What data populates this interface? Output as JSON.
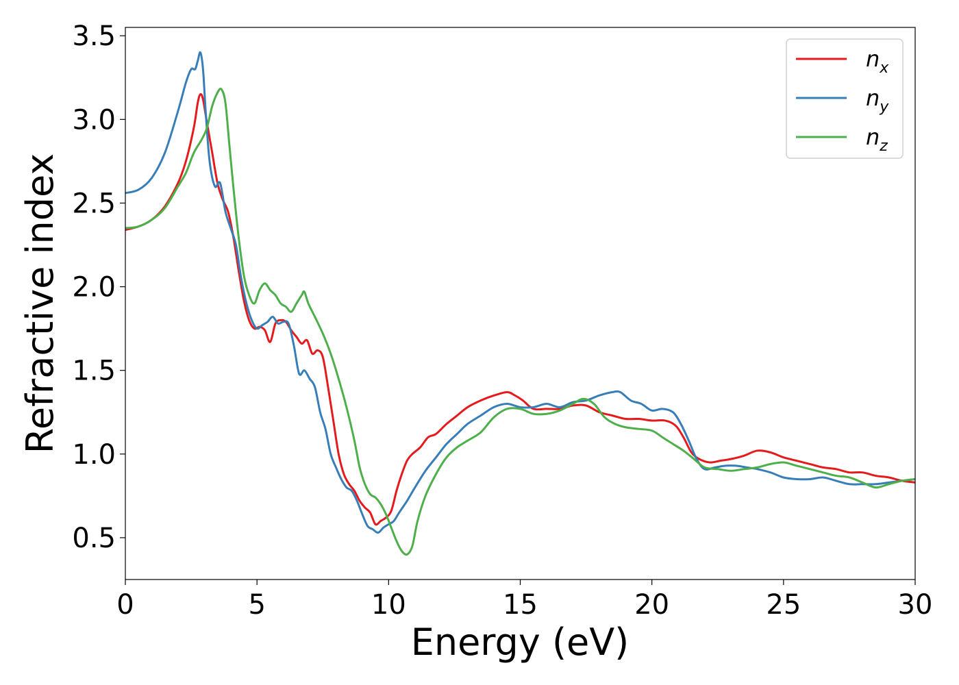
{
  "chart_data": {
    "type": "line",
    "xlabel": "Energy (eV)",
    "ylabel": "Refractive index",
    "xlim": [
      0,
      30
    ],
    "ylim": [
      0.25,
      3.55
    ],
    "xticks": [
      0,
      5,
      10,
      15,
      20,
      25,
      30
    ],
    "xtick_labels": [
      "0",
      "5",
      "10",
      "15",
      "20",
      "25",
      "30"
    ],
    "yticks": [
      0.5,
      1.0,
      1.5,
      2.0,
      2.5,
      3.0,
      3.5
    ],
    "ytick_labels": [
      "0.5",
      "1.0",
      "1.5",
      "2.0",
      "2.5",
      "3.0",
      "3.5"
    ],
    "grid": false,
    "legend_position": "top-right",
    "series": [
      {
        "name": "n_x",
        "label_base": "n",
        "label_sub": "x",
        "color": "#e41a1c",
        "x": [
          0,
          0.5,
          1,
          1.5,
          2,
          2.3,
          2.6,
          2.75,
          2.85,
          2.95,
          3.1,
          3.3,
          3.5,
          3.7,
          3.9,
          4.1,
          4.3,
          4.5,
          4.7,
          4.9,
          5.1,
          5.3,
          5.5,
          5.7,
          5.9,
          6.1,
          6.3,
          6.5,
          6.7,
          6.9,
          7.1,
          7.3,
          7.5,
          7.7,
          7.9,
          8.1,
          8.3,
          8.5,
          8.7,
          8.9,
          9.1,
          9.3,
          9.5,
          9.7,
          9.9,
          10.1,
          10.3,
          10.5,
          10.7,
          10.9,
          11.2,
          11.5,
          11.8,
          12.2,
          12.6,
          13,
          13.5,
          14,
          14.5,
          14.8,
          15.1,
          15.5,
          16,
          16.5,
          17,
          17.5,
          18,
          18.5,
          19,
          19.5,
          20,
          20.5,
          20.9,
          21.2,
          21.5,
          21.8,
          22.2,
          22.6,
          23,
          23.5,
          24,
          24.5,
          25,
          25.5,
          26,
          26.5,
          27,
          27.5,
          28,
          28.5,
          29,
          29.5,
          30
        ],
        "y": [
          2.34,
          2.36,
          2.4,
          2.48,
          2.62,
          2.75,
          2.95,
          3.1,
          3.15,
          3.12,
          2.98,
          2.8,
          2.62,
          2.52,
          2.45,
          2.3,
          2.1,
          1.92,
          1.8,
          1.75,
          1.76,
          1.74,
          1.67,
          1.78,
          1.8,
          1.79,
          1.74,
          1.7,
          1.66,
          1.68,
          1.6,
          1.62,
          1.58,
          1.4,
          1.2,
          1.0,
          0.88,
          0.82,
          0.78,
          0.72,
          0.68,
          0.65,
          0.58,
          0.6,
          0.62,
          0.66,
          0.78,
          0.88,
          0.96,
          1.0,
          1.04,
          1.1,
          1.12,
          1.18,
          1.23,
          1.28,
          1.32,
          1.35,
          1.37,
          1.35,
          1.32,
          1.27,
          1.27,
          1.27,
          1.29,
          1.29,
          1.25,
          1.23,
          1.21,
          1.21,
          1.2,
          1.2,
          1.17,
          1.1,
          1.01,
          0.97,
          0.95,
          0.96,
          0.97,
          0.99,
          1.02,
          1.01,
          0.98,
          0.96,
          0.94,
          0.92,
          0.91,
          0.89,
          0.89,
          0.87,
          0.86,
          0.84,
          0.83
        ]
      },
      {
        "name": "n_y",
        "label_base": "n",
        "label_sub": "y",
        "color": "#377eb8",
        "x": [
          0,
          0.5,
          1,
          1.5,
          2,
          2.3,
          2.5,
          2.65,
          2.75,
          2.85,
          2.95,
          3.05,
          3.2,
          3.4,
          3.6,
          3.8,
          4.0,
          4.2,
          4.4,
          4.6,
          4.8,
          5.0,
          5.2,
          5.4,
          5.6,
          5.8,
          6.0,
          6.2,
          6.4,
          6.6,
          6.8,
          7.0,
          7.2,
          7.4,
          7.6,
          7.8,
          8.0,
          8.2,
          8.4,
          8.6,
          8.8,
          9.0,
          9.2,
          9.4,
          9.6,
          9.8,
          10,
          10.2,
          10.4,
          10.7,
          11,
          11.4,
          11.8,
          12.2,
          12.6,
          13,
          13.5,
          14,
          14.5,
          15,
          15.5,
          16,
          16.5,
          17,
          17.5,
          18,
          18.5,
          18.8,
          19.2,
          19.6,
          20,
          20.4,
          20.8,
          21.1,
          21.4,
          21.7,
          22,
          22.4,
          22.8,
          23.2,
          23.6,
          24,
          24.5,
          25,
          25.5,
          26,
          26.5,
          27,
          27.5,
          28,
          28.5,
          29,
          29.5,
          30
        ],
        "y": [
          2.56,
          2.58,
          2.65,
          2.8,
          3.05,
          3.22,
          3.3,
          3.3,
          3.35,
          3.4,
          3.3,
          3.05,
          2.75,
          2.6,
          2.62,
          2.45,
          2.35,
          2.25,
          2.05,
          1.9,
          1.8,
          1.75,
          1.77,
          1.79,
          1.82,
          1.78,
          1.79,
          1.78,
          1.65,
          1.48,
          1.5,
          1.45,
          1.4,
          1.25,
          1.15,
          1.0,
          0.92,
          0.85,
          0.8,
          0.78,
          0.72,
          0.64,
          0.57,
          0.55,
          0.53,
          0.56,
          0.58,
          0.6,
          0.65,
          0.72,
          0.8,
          0.9,
          0.98,
          1.06,
          1.12,
          1.18,
          1.23,
          1.28,
          1.3,
          1.28,
          1.28,
          1.3,
          1.28,
          1.31,
          1.32,
          1.35,
          1.37,
          1.37,
          1.32,
          1.3,
          1.26,
          1.27,
          1.25,
          1.18,
          1.08,
          0.97,
          0.91,
          0.92,
          0.93,
          0.93,
          0.92,
          0.91,
          0.89,
          0.86,
          0.85,
          0.85,
          0.86,
          0.84,
          0.82,
          0.82,
          0.82,
          0.83,
          0.84,
          0.85
        ]
      },
      {
        "name": "n_z",
        "label_base": "n",
        "label_sub": "z",
        "color": "#4daf4a",
        "x": [
          0,
          0.5,
          1,
          1.5,
          2,
          2.3,
          2.6,
          2.9,
          3.1,
          3.3,
          3.5,
          3.65,
          3.8,
          3.95,
          4.1,
          4.3,
          4.5,
          4.7,
          4.9,
          5.1,
          5.3,
          5.5,
          5.7,
          5.9,
          6.1,
          6.3,
          6.5,
          6.7,
          6.8,
          6.95,
          7.2,
          7.5,
          7.8,
          8.1,
          8.4,
          8.7,
          8.9,
          9.1,
          9.3,
          9.5,
          9.7,
          9.9,
          10.1,
          10.3,
          10.5,
          10.7,
          10.9,
          11.1,
          11.4,
          11.8,
          12.2,
          12.6,
          13,
          13.5,
          14,
          14.5,
          15,
          15.5,
          16,
          16.5,
          17,
          17.4,
          17.8,
          18.2,
          18.6,
          19,
          19.5,
          20,
          20.4,
          20.8,
          21.2,
          21.6,
          22,
          22.5,
          23,
          23.5,
          24,
          24.5,
          25,
          25.5,
          26,
          26.5,
          27,
          27.5,
          28,
          28.5,
          29,
          29.5,
          30
        ],
        "y": [
          2.35,
          2.36,
          2.4,
          2.47,
          2.6,
          2.68,
          2.8,
          2.88,
          2.95,
          3.08,
          3.16,
          3.18,
          3.1,
          2.85,
          2.6,
          2.3,
          2.07,
          1.95,
          1.9,
          1.98,
          2.02,
          1.98,
          1.95,
          1.9,
          1.88,
          1.85,
          1.9,
          1.95,
          1.97,
          1.9,
          1.82,
          1.72,
          1.6,
          1.45,
          1.28,
          1.08,
          0.92,
          0.82,
          0.76,
          0.74,
          0.7,
          0.64,
          0.56,
          0.48,
          0.42,
          0.4,
          0.45,
          0.6,
          0.75,
          0.88,
          0.98,
          1.04,
          1.08,
          1.13,
          1.22,
          1.27,
          1.27,
          1.24,
          1.24,
          1.26,
          1.3,
          1.33,
          1.3,
          1.22,
          1.18,
          1.16,
          1.15,
          1.14,
          1.1,
          1.06,
          1.02,
          0.97,
          0.92,
          0.91,
          0.9,
          0.91,
          0.92,
          0.94,
          0.95,
          0.93,
          0.91,
          0.89,
          0.87,
          0.86,
          0.83,
          0.8,
          0.82,
          0.84,
          0.85
        ]
      }
    ]
  }
}
